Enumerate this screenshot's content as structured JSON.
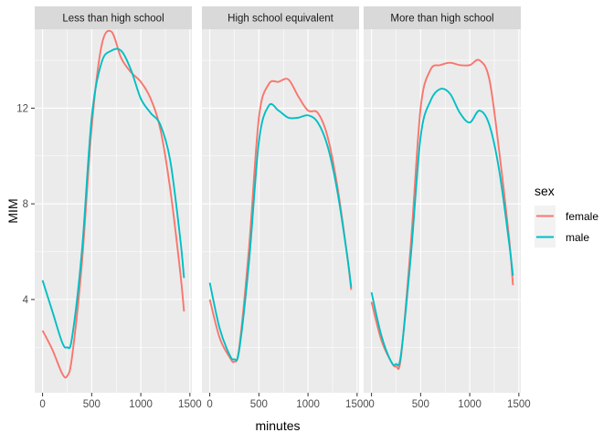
{
  "chart_data": {
    "type": "line",
    "xlabel": "minutes",
    "ylabel": "MIM",
    "xlim": [
      -80,
      1520
    ],
    "ylim": [
      0.1,
      15.3
    ],
    "x_ticks": [
      0,
      500,
      1000,
      1500
    ],
    "x_tick_labels": [
      "0",
      "500",
      "1000",
      "1500"
    ],
    "y_ticks": [
      4,
      8,
      12
    ],
    "y_tick_labels": [
      "4",
      "8",
      "12"
    ],
    "grid": true,
    "legend_position": "right",
    "legend": {
      "title": "sex",
      "entries": [
        {
          "label": "female",
          "color": "#F8766D"
        },
        {
          "label": "male",
          "color": "#00BFC4"
        }
      ]
    },
    "colors": {
      "female": "#F8766D",
      "male": "#00BFC4",
      "panel_bg": "#EBEBEB",
      "strip_bg": "#D9D9D9"
    },
    "panels": [
      {
        "strip": "Less than high school",
        "series": [
          {
            "name": "female",
            "x": [
              0,
              100,
              200,
              250,
              300,
              400,
              500,
              600,
              700,
              800,
              900,
              1000,
              1100,
              1200,
              1300,
              1400,
              1440
            ],
            "y": [
              2.7,
              1.9,
              0.9,
              0.8,
              1.6,
              5.5,
              11.2,
              14.6,
              15.2,
              14.1,
              13.5,
              13.1,
              12.4,
              11.1,
              8.6,
              5.2,
              3.5
            ]
          },
          {
            "name": "male",
            "x": [
              0,
              100,
              200,
              250,
              300,
              400,
              500,
              600,
              700,
              800,
              900,
              1000,
              1100,
              1200,
              1300,
              1400,
              1440
            ],
            "y": [
              4.8,
              3.5,
              2.2,
              2.0,
              2.4,
              6.0,
              11.6,
              13.9,
              14.4,
              14.4,
              13.6,
              12.4,
              11.8,
              11.3,
              9.8,
              6.6,
              4.9
            ]
          }
        ]
      },
      {
        "strip": "High school equivalent",
        "series": [
          {
            "name": "female",
            "x": [
              0,
              100,
              200,
              250,
              300,
              400,
              500,
              600,
              700,
              800,
              900,
              1000,
              1100,
              1200,
              1300,
              1400,
              1440
            ],
            "y": [
              4.0,
              2.4,
              1.6,
              1.4,
              2.0,
              6.2,
              11.6,
              13.0,
              13.1,
              13.2,
              12.5,
              11.9,
              11.8,
              10.8,
              8.7,
              5.8,
              4.4
            ]
          },
          {
            "name": "male",
            "x": [
              0,
              100,
              200,
              250,
              300,
              400,
              500,
              600,
              700,
              800,
              900,
              1000,
              1100,
              1200,
              1300,
              1400,
              1440
            ],
            "y": [
              4.7,
              2.8,
              1.7,
              1.5,
              1.9,
              5.6,
              10.6,
              12.1,
              11.9,
              11.6,
              11.6,
              11.7,
              11.4,
              10.4,
              8.5,
              5.8,
              4.5
            ]
          }
        ]
      },
      {
        "strip": "More than high school",
        "series": [
          {
            "name": "female",
            "x": [
              0,
              100,
              200,
              250,
              300,
              400,
              500,
              600,
              700,
              800,
              900,
              1000,
              1100,
              1200,
              1300,
              1400,
              1440
            ],
            "y": [
              3.9,
              2.3,
              1.4,
              1.2,
              1.6,
              6.3,
              12.0,
              13.6,
              13.8,
              13.9,
              13.8,
              13.8,
              14.0,
              13.2,
              10.2,
              6.6,
              4.6
            ]
          },
          {
            "name": "male",
            "x": [
              0,
              100,
              200,
              250,
              300,
              400,
              500,
              600,
              700,
              800,
              900,
              1000,
              1100,
              1200,
              1300,
              1400,
              1440
            ],
            "y": [
              4.3,
              2.5,
              1.4,
              1.3,
              1.7,
              5.8,
              10.8,
              12.3,
              12.8,
              12.6,
              11.8,
              11.4,
              11.9,
              11.3,
              9.4,
              6.4,
              5.0
            ]
          }
        ]
      }
    ]
  }
}
